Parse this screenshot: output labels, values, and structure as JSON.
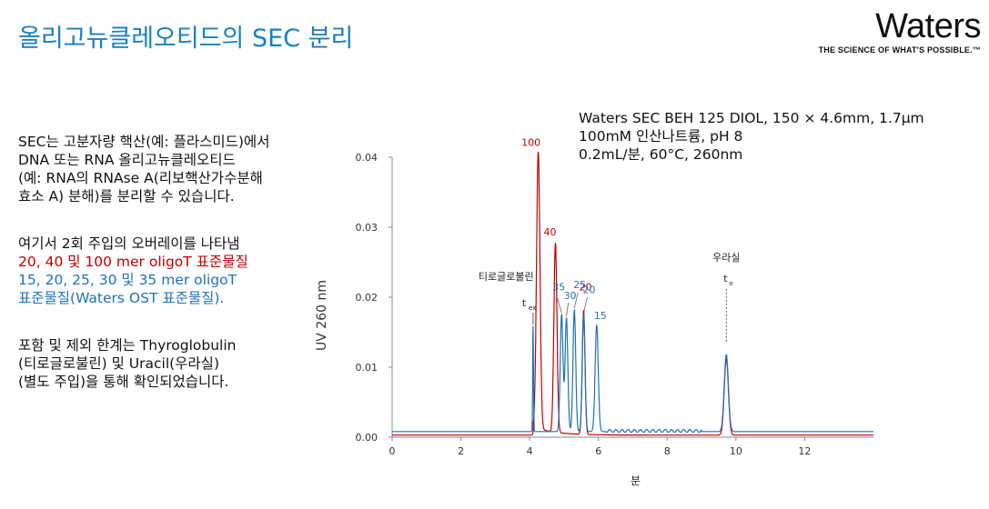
{
  "title": "올리고뉴클레오티드의 SEC 분리",
  "logo": {
    "wordmark": "Waters",
    "tagline": "THE SCIENCE OF WHAT'S POSSIBLE.™"
  },
  "paragraphs": {
    "p1": [
      "SEC는 고분자량 핵산(예: 플라스미드)에서",
      "DNA 또는 RNA 올리고뉴클레오티드",
      "(예: RNA의 RNAse A(리보핵산가수분해",
      "효소 A) 분해)를 분리할 수 있습니다."
    ],
    "p2": {
      "line1": "여기서 2회 주입의 오버레이를 나타냄",
      "red_line": "20, 40 및 100 mer oligoT 표준물질",
      "blue_line1": "15, 20, 25, 30 및 35 mer oligoT",
      "blue_line2": "표준물질(Waters OST 표준물질)."
    },
    "p3": [
      "포함 및 제외 한계는 Thyroglobulin",
      "(티로글로불린) 및 Uracil(우라실)",
      "(별도 주입)을 통해 확인되었습니다."
    ]
  },
  "conditions": [
    "Waters SEC BEH 125 DIOL, 150 × 4.6mm, 1.7µm",
    "100mM 인산나트륨, pH 8",
    "0.2mL/분, 60°C, 260nm"
  ],
  "colors": {
    "title": "#1a7fc1",
    "red": "#c00000",
    "blue": "#1f72b8"
  },
  "chart_data": {
    "type": "line",
    "xlabel": "분",
    "ylabel": "UV 260 nm",
    "xlim": [
      0,
      14
    ],
    "ylim": [
      0,
      0.04
    ],
    "xticks": [
      "0",
      "2",
      "4",
      "6",
      "8",
      "10",
      "12"
    ],
    "yticks": [
      "0.00",
      "0.01",
      "0.02",
      "0.03",
      "0.04"
    ],
    "baseline": {
      "red": 0.0003,
      "blue": 0.0008
    },
    "series": [
      {
        "color": "#c00000",
        "peaks": [
          {
            "t": 4.25,
            "h": 0.0398,
            "w": 0.05,
            "label": "100"
          },
          {
            "t": 4.75,
            "h": 0.0273,
            "w": 0.045,
            "label": "40"
          },
          {
            "t": 5.57,
            "h": 0.018,
            "w": 0.04,
            "label": "20"
          },
          {
            "t": 9.72,
            "h": 0.0112,
            "w": 0.06
          }
        ]
      },
      {
        "color": "#1f72b8",
        "peaks": [
          {
            "t": 4.1,
            "h": 0.0158,
            "w": 0.012
          },
          {
            "t": 4.93,
            "h": 0.0175,
            "w": 0.04,
            "label": "35"
          },
          {
            "t": 5.07,
            "h": 0.017,
            "w": 0.04,
            "label": "30"
          },
          {
            "t": 5.3,
            "h": 0.0182,
            "w": 0.04,
            "label": "25"
          },
          {
            "t": 5.57,
            "h": 0.0175,
            "w": 0.04,
            "label": "20"
          },
          {
            "t": 5.95,
            "h": 0.016,
            "w": 0.045,
            "label": "15"
          },
          {
            "t": 9.72,
            "h": 0.0118,
            "w": 0.06
          }
        ]
      }
    ],
    "annotations": {
      "thyroglobulin": "티로글로불린",
      "tex": "t",
      "tex_sub": "ex",
      "uracil": "우라실",
      "t0": "t",
      "t0_sub": "o"
    }
  }
}
